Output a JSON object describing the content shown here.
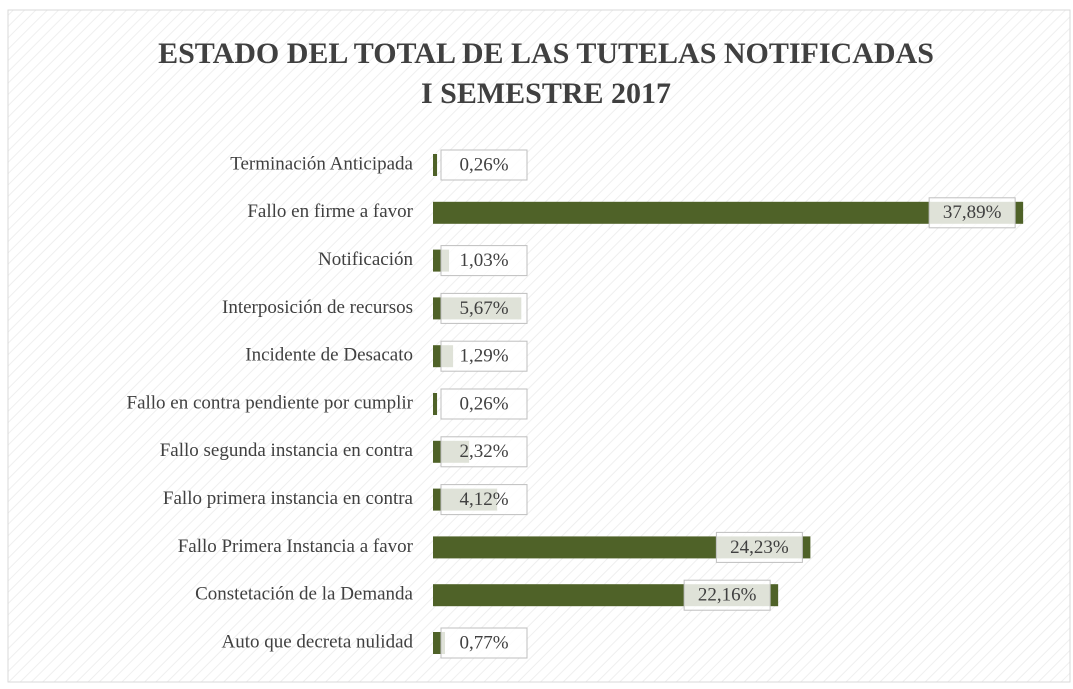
{
  "chart_data": {
    "type": "bar",
    "orientation": "horizontal",
    "title": [
      "ESTADO DEL TOTAL DE LAS TUTELAS NOTIFICADAS",
      "I SEMESTRE 2017"
    ],
    "categories": [
      "Terminación Anticipada",
      "Fallo en firme a favor",
      "Notificación",
      "Interposición de recursos",
      "Incidente de Desacato",
      "Fallo en contra pendiente por cumplir",
      "Fallo segunda instancia en contra",
      "Fallo primera instancia en contra",
      "Fallo Primera Instancia a favor",
      "Constetación de la Demanda",
      "Auto que decreta nulidad"
    ],
    "values": [
      0.26,
      37.89,
      1.03,
      5.67,
      1.29,
      0.26,
      2.32,
      4.12,
      24.23,
      22.16,
      0.77
    ],
    "value_labels": [
      "0,26%",
      "37,89%",
      "1,03%",
      "5,67%",
      "1,29%",
      "0,26%",
      "2,32%",
      "4,12%",
      "24,23%",
      "22,16%",
      "0,77%"
    ],
    "color": "#4f6228",
    "xlim": [
      0,
      40
    ]
  }
}
